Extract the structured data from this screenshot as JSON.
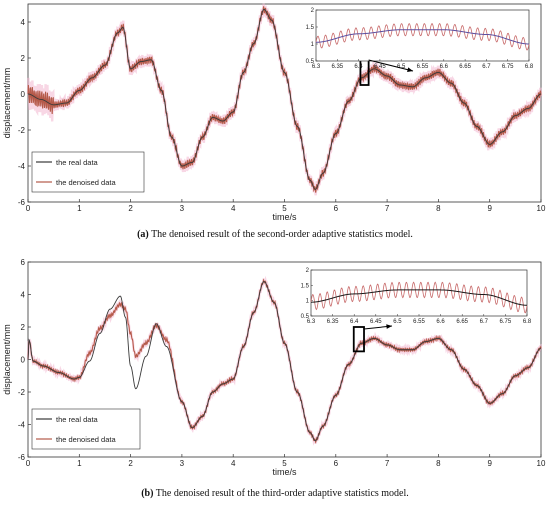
{
  "chart_data": [
    {
      "type": "line",
      "panel_tag": "(a)",
      "caption": "The denoised result of the second-order adaptive statistics model.",
      "xlabel": "time/s",
      "ylabel": "displacement/mm",
      "xlim": [
        0,
        10
      ],
      "ylim": [
        -6,
        5
      ],
      "xticks": [
        "0",
        "1",
        "2",
        "3",
        "4",
        "5",
        "6",
        "7",
        "8",
        "9",
        "10"
      ],
      "yticks": [
        "-6",
        "-4",
        "-2",
        "0",
        "2",
        "4"
      ],
      "grid": false,
      "legend_position": "bottom-left",
      "series": [
        {
          "name": "the real data",
          "color": "#3a3a3a"
        },
        {
          "name": "the denoised data",
          "color": "#b55a4a"
        }
      ],
      "noise_level": "high",
      "real_data": {
        "x": [
          0,
          0.25,
          0.5,
          0.75,
          1.0,
          1.25,
          1.5,
          1.75,
          1.85,
          2.0,
          2.2,
          2.4,
          2.6,
          2.8,
          3.0,
          3.2,
          3.4,
          3.6,
          3.8,
          4.0,
          4.2,
          4.4,
          4.6,
          4.75,
          5.0,
          5.25,
          5.5,
          5.6,
          5.75,
          6.0,
          6.25,
          6.5,
          6.75,
          7.0,
          7.25,
          7.5,
          7.75,
          8.0,
          8.25,
          8.5,
          8.75,
          9.0,
          9.25,
          9.5,
          9.75,
          10.0
        ],
        "y": [
          0,
          -0.3,
          -0.6,
          -0.5,
          0.2,
          0.9,
          1.6,
          3.4,
          3.7,
          1.4,
          1.8,
          1.9,
          0.2,
          -2.4,
          -4.0,
          -3.8,
          -2.4,
          -1.3,
          -1.5,
          -1.0,
          1.2,
          2.8,
          4.7,
          4.1,
          1.2,
          -1.8,
          -4.8,
          -5.3,
          -4.4,
          -2.2,
          -0.4,
          0.9,
          1.4,
          1.0,
          0.5,
          0.4,
          0.9,
          1.2,
          0.6,
          -0.5,
          -1.8,
          -2.8,
          -2.1,
          -1.2,
          -0.8,
          0.0
        ]
      },
      "inset": {
        "xlim": [
          6.3,
          6.8
        ],
        "ylim": [
          0.5,
          2
        ],
        "xticks": [
          "6.3",
          "6.35",
          "6.4",
          "6.45",
          "6.5",
          "6.55",
          "6.6",
          "6.65",
          "6.7",
          "6.75",
          "6.8"
        ],
        "yticks": [
          "0.5",
          "1",
          "1.5",
          "2"
        ],
        "real_curve": {
          "x": [
            6.3,
            6.4,
            6.5,
            6.6,
            6.7,
            6.8
          ],
          "y": [
            1.05,
            1.3,
            1.42,
            1.42,
            1.28,
            1.0
          ]
        },
        "denoised_oscillation": {
          "amplitude": 0.18,
          "cycles": 28
        }
      },
      "zoom_region": {
        "x": [
          6.48,
          6.64
        ],
        "y": [
          0.5,
          2
        ]
      }
    },
    {
      "type": "line",
      "panel_tag": "(b)",
      "caption": "The denoised result of the third-order adaptive statistics model.",
      "xlabel": "time/s",
      "ylabel": "displacement/mm",
      "xlim": [
        0,
        10
      ],
      "ylim": [
        -6,
        6
      ],
      "xticks": [
        "0",
        "1",
        "2",
        "3",
        "4",
        "5",
        "6",
        "7",
        "8",
        "9",
        "10"
      ],
      "yticks": [
        "-6",
        "-4",
        "-2",
        "0",
        "2",
        "4",
        "6"
      ],
      "grid": false,
      "legend_position": "bottom-left",
      "series": [
        {
          "name": "the real data",
          "color": "#3a3a3a"
        },
        {
          "name": "the denoised data",
          "color": "#b55a4a"
        }
      ],
      "noise_level": "low",
      "real_data": {
        "x": [
          0,
          0.02,
          0.1,
          0.3,
          0.6,
          0.9,
          1.0,
          1.2,
          1.4,
          1.6,
          1.8,
          1.9,
          2.0,
          2.1,
          2.3,
          2.5,
          2.7,
          3.0,
          3.2,
          3.4,
          3.6,
          3.8,
          4.0,
          4.2,
          4.4,
          4.6,
          4.8,
          5.0,
          5.25,
          5.5,
          5.6,
          5.75,
          6.0,
          6.25,
          6.5,
          6.75,
          7.0,
          7.25,
          7.5,
          7.75,
          8.0,
          8.25,
          8.5,
          8.75,
          9.0,
          9.25,
          9.5,
          9.75,
          10.0
        ],
        "y": [
          0,
          1.2,
          -0.1,
          -0.4,
          -0.8,
          -1.2,
          -1.1,
          -0.1,
          1.6,
          3.1,
          3.9,
          2.6,
          -0.4,
          -1.8,
          0.2,
          2.2,
          0.8,
          -2.6,
          -4.2,
          -3.5,
          -2.0,
          -1.5,
          -1.2,
          0.8,
          2.9,
          4.8,
          3.5,
          1.0,
          -2.0,
          -4.5,
          -5.0,
          -4.1,
          -2.2,
          -0.3,
          1.0,
          1.3,
          0.9,
          0.6,
          0.6,
          1.1,
          1.3,
          0.6,
          -0.6,
          -1.6,
          -2.7,
          -2.1,
          -1.0,
          -0.5,
          0.7
        ]
      },
      "denoised_data": {
        "x": [
          0,
          0.02,
          0.1,
          0.3,
          0.6,
          0.9,
          1.0,
          1.2,
          1.4,
          1.6,
          1.8,
          1.9,
          2.0,
          2.1,
          2.3,
          2.5,
          2.7,
          3.0,
          3.2,
          3.4,
          3.6,
          3.8,
          4.0,
          4.2,
          4.4,
          4.6,
          4.8,
          5.0,
          5.25,
          5.5,
          5.6,
          5.75,
          6.0,
          6.25,
          6.5,
          6.75,
          7.0,
          7.25,
          7.5,
          7.75,
          8.0,
          8.25,
          8.5,
          8.75,
          9.0,
          9.25,
          9.5,
          9.75,
          10.0
        ],
        "y": [
          0,
          1.2,
          -0.1,
          -0.4,
          -0.8,
          -1.2,
          -1.1,
          0.4,
          1.9,
          2.7,
          3.4,
          3.1,
          1.6,
          0.2,
          1.0,
          2.1,
          1.2,
          -2.6,
          -4.2,
          -3.5,
          -2.0,
          -1.5,
          -1.2,
          0.8,
          2.9,
          4.8,
          3.5,
          1.0,
          -2.0,
          -4.5,
          -5.0,
          -4.1,
          -2.2,
          -0.3,
          1.0,
          1.3,
          0.9,
          0.6,
          0.6,
          1.1,
          1.3,
          0.6,
          -0.6,
          -1.6,
          -2.7,
          -2.1,
          -1.0,
          -0.5,
          0.7
        ]
      },
      "inset": {
        "xlim": [
          6.3,
          6.8
        ],
        "ylim": [
          0.5,
          2
        ],
        "xticks": [
          "6.3",
          "6.35",
          "6.4",
          "6.45",
          "6.5",
          "6.55",
          "6.6",
          "6.65",
          "6.7",
          "6.75",
          "6.8"
        ],
        "yticks": [
          "0.5",
          "1",
          "1.5",
          "2"
        ],
        "real_curve": {
          "x": [
            6.3,
            6.4,
            6.5,
            6.6,
            6.7,
            6.8
          ],
          "y": [
            0.95,
            1.22,
            1.35,
            1.35,
            1.2,
            0.85
          ]
        },
        "denoised_oscillation": {
          "amplitude": 0.25,
          "cycles": 30
        }
      },
      "zoom_region": {
        "x": [
          6.35,
          6.55
        ],
        "y": [
          0.5,
          2
        ]
      }
    }
  ]
}
